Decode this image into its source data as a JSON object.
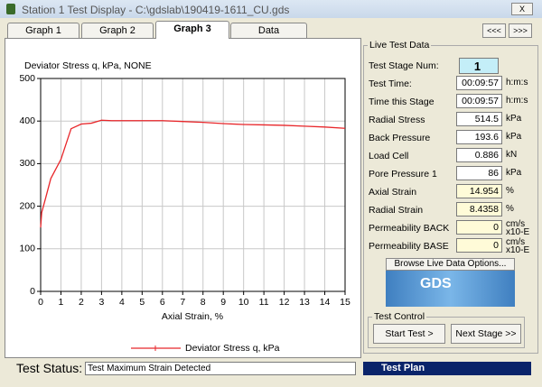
{
  "window": {
    "title": "Station 1 Test Display - C:\\gdslab\\190419-1611_CU.gds",
    "close": "X"
  },
  "tabs": [
    "Graph 1",
    "Graph 2",
    "Graph 3",
    "Data"
  ],
  "active_tab": 2,
  "nav": [
    "<<<",
    ">>>"
  ],
  "chart_data": {
    "type": "line",
    "title": "Deviator Stress q, kPa, NONE",
    "x_label": "Axial Strain, %",
    "xlim": [
      0,
      15
    ],
    "ylim": [
      0,
      500
    ],
    "xticks": [
      0,
      1,
      2,
      3,
      4,
      5,
      6,
      7,
      8,
      9,
      10,
      11,
      12,
      13,
      14,
      15
    ],
    "yticks": [
      0,
      100,
      200,
      300,
      400,
      500
    ],
    "grid": true,
    "legend": "bottom",
    "x": [
      0,
      0.05,
      0.25,
      0.5,
      1,
      1.5,
      2,
      2.5,
      3,
      3.5,
      4,
      5,
      6,
      7,
      8,
      9,
      10,
      11,
      12,
      13,
      14,
      15
    ],
    "series": [
      {
        "name": "Deviator Stress q, kPa",
        "color": "#e8262a",
        "values": [
          150,
          185,
          220,
          265,
          310,
          382,
          393,
          395,
          402,
          401,
          401,
          401,
          401,
          399,
          397,
          394,
          392,
          391,
          390,
          388,
          386,
          383
        ]
      }
    ]
  },
  "live": {
    "title": "Live Test Data",
    "rows": [
      {
        "label": "Test Stage Num:",
        "value": "1",
        "color": "#c4eef8"
      },
      {
        "label": "Test Time:",
        "value": "00:09:57",
        "unit": "h:m:s",
        "color": "#ffffff"
      },
      {
        "label": "Time this Stage",
        "value": "00:09:57",
        "unit": "h:m:s",
        "color": "#ffffff"
      },
      {
        "label": "Radial Stress",
        "value": "514.5",
        "unit": "kPa",
        "color": "#ffffff"
      },
      {
        "label": "Back Pressure",
        "value": "193.6",
        "unit": "kPa",
        "color": "#ffffff"
      },
      {
        "label": "Load Cell",
        "value": "0.886",
        "unit": "kN",
        "color": "#ffffff"
      },
      {
        "label": "Pore Pressure 1",
        "value": "86",
        "unit": "kPa",
        "color": "#ffffff"
      },
      {
        "label": "Axial Strain",
        "value": "14.954",
        "unit": "%",
        "color": "#fffbd8"
      },
      {
        "label": "Radial Strain",
        "value": "8.4358",
        "unit": "%",
        "color": "#fffbd8"
      },
      {
        "label": "Permeability BACK",
        "value": "0",
        "unit": "cm/s",
        "unit2": "x10-E",
        "color": "#fffbd8"
      },
      {
        "label": "Permeability BASE",
        "value": "0",
        "unit": "cm/s",
        "unit2": "x10-E",
        "color": "#fffbd8"
      }
    ]
  },
  "browse": "Browse Live Data Options...",
  "logo": "GDS",
  "test_control": {
    "title": "Test Control",
    "buttons": [
      "Start Test >",
      "Next Stage >>"
    ]
  },
  "status": {
    "label": "Test Status:",
    "value": "Test Maximum Strain Detected"
  },
  "test_plan": "Test Plan"
}
